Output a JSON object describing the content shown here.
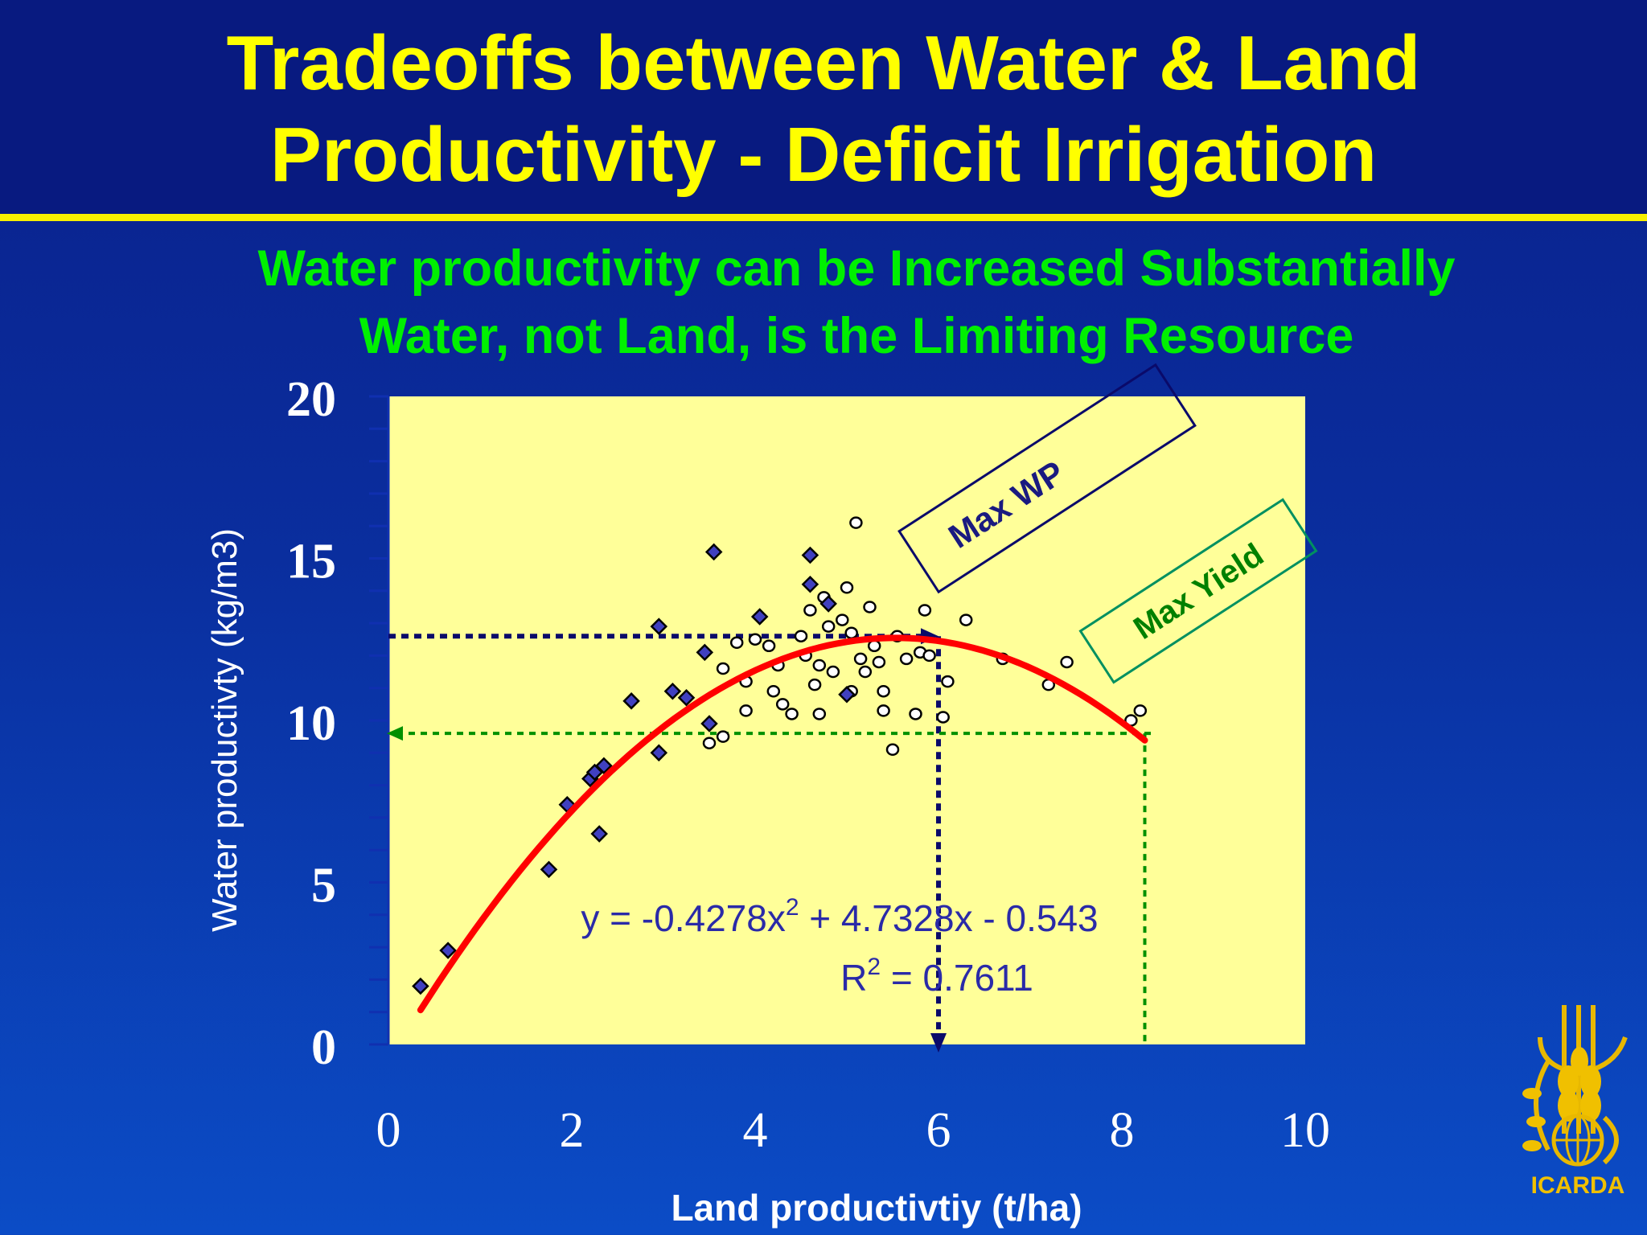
{
  "slide": {
    "title_line1": "Tradeoffs between Water & Land",
    "title_line2": "Productivity - Deficit Irrigation",
    "subtitle_line1": "Water productivity can be Increased Substantially",
    "subtitle_line2": "Water, not Land, is the Limiting Resource",
    "logo_text": "ICARDA"
  },
  "colors": {
    "plot_bg": "#ffff99",
    "fit_line": "#ff0000",
    "max_wp": "#0a0a6a",
    "max_yield": "#009000",
    "diamond": "#4040c0"
  },
  "chart_data": {
    "type": "scatter",
    "xlabel": "Land productivtiy (t/ha)",
    "ylabel": "Water productivty (kg/m3)",
    "xlim": [
      0,
      10
    ],
    "ylim": [
      0,
      20
    ],
    "x_ticks": [
      "0",
      "2",
      "4",
      "6",
      "8",
      "10"
    ],
    "y_ticks": [
      "0",
      "5",
      "10",
      "15",
      "20"
    ],
    "fit": {
      "a": -0.4278,
      "b": 4.7328,
      "c": -0.543,
      "x_range": [
        0.35,
        8.25
      ],
      "equation_prefix": "y = -0.4278x",
      "equation_exp": "2",
      "equation_suffix": " + 4.7328x - 0.543",
      "r2_prefix": "R",
      "r2_exp": "2",
      "r2_suffix": " = 0.7611"
    },
    "annotations": [
      {
        "label": "Max WP",
        "x": 6.0,
        "y": 12.6
      },
      {
        "label": "Max Yield",
        "x": 8.25,
        "y": 9.6
      }
    ],
    "series": [
      {
        "marker": "diamond",
        "points": [
          [
            0.35,
            1.8
          ],
          [
            0.65,
            2.9
          ],
          [
            1.75,
            5.4
          ],
          [
            1.95,
            7.4
          ],
          [
            2.2,
            8.2
          ],
          [
            2.25,
            8.4
          ],
          [
            2.3,
            6.5
          ],
          [
            2.35,
            8.6
          ],
          [
            2.65,
            10.6
          ],
          [
            2.95,
            12.9
          ],
          [
            2.95,
            9.0
          ],
          [
            3.1,
            10.9
          ],
          [
            3.25,
            10.7
          ],
          [
            3.45,
            12.1
          ],
          [
            3.5,
            9.9
          ],
          [
            3.55,
            15.2
          ],
          [
            4.05,
            13.2
          ],
          [
            4.6,
            15.1
          ],
          [
            4.6,
            14.2
          ],
          [
            4.8,
            13.6
          ],
          [
            5.0,
            10.8
          ]
        ]
      },
      {
        "marker": "circle",
        "points": [
          [
            3.5,
            9.3
          ],
          [
            3.65,
            11.6
          ],
          [
            3.65,
            9.5
          ],
          [
            3.8,
            12.4
          ],
          [
            3.9,
            11.2
          ],
          [
            3.9,
            10.3
          ],
          [
            4.0,
            12.5
          ],
          [
            4.15,
            12.3
          ],
          [
            4.2,
            10.9
          ],
          [
            4.25,
            11.7
          ],
          [
            4.3,
            10.5
          ],
          [
            4.4,
            10.2
          ],
          [
            4.5,
            12.6
          ],
          [
            4.55,
            12.0
          ],
          [
            4.6,
            13.4
          ],
          [
            4.65,
            11.1
          ],
          [
            4.7,
            11.7
          ],
          [
            4.7,
            10.2
          ],
          [
            4.75,
            13.8
          ],
          [
            4.8,
            12.9
          ],
          [
            4.85,
            11.5
          ],
          [
            4.95,
            13.1
          ],
          [
            5.0,
            14.1
          ],
          [
            5.05,
            12.7
          ],
          [
            5.05,
            10.9
          ],
          [
            5.1,
            16.1
          ],
          [
            5.15,
            11.9
          ],
          [
            5.2,
            11.5
          ],
          [
            5.25,
            13.5
          ],
          [
            5.3,
            12.3
          ],
          [
            5.35,
            11.8
          ],
          [
            5.4,
            10.9
          ],
          [
            5.4,
            10.3
          ],
          [
            5.5,
            9.1
          ],
          [
            5.55,
            12.6
          ],
          [
            5.65,
            11.9
          ],
          [
            5.75,
            10.2
          ],
          [
            5.8,
            12.1
          ],
          [
            5.85,
            13.4
          ],
          [
            5.9,
            12.0
          ],
          [
            6.05,
            10.1
          ],
          [
            6.1,
            11.2
          ],
          [
            6.3,
            13.1
          ],
          [
            6.7,
            11.9
          ],
          [
            7.2,
            11.1
          ],
          [
            7.4,
            11.8
          ],
          [
            8.1,
            10.0
          ],
          [
            8.2,
            10.3
          ]
        ]
      }
    ]
  }
}
